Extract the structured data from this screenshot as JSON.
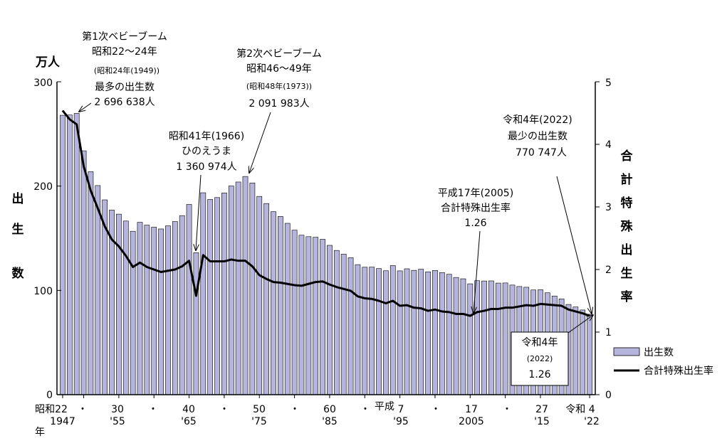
{
  "chart_data": {
    "type": "bar+line",
    "left_axis": {
      "unit_label": "万人",
      "title_chars": [
        "出",
        "生",
        "数"
      ],
      "min": 0,
      "max": 300,
      "ticks": [
        "0",
        "100",
        "200",
        "300"
      ],
      "tick_values": [
        0,
        100,
        200,
        300
      ]
    },
    "right_axis": {
      "title_chars": [
        "合",
        "計",
        "特",
        "殊",
        "出",
        "生",
        "率"
      ],
      "min": 0,
      "max": 5,
      "ticks": [
        "0",
        "1",
        "2",
        "3",
        "4",
        "5"
      ],
      "tick_values": [
        0,
        1,
        2,
        3,
        4,
        5
      ]
    },
    "years": [
      1947,
      1948,
      1949,
      1950,
      1951,
      1952,
      1953,
      1954,
      1955,
      1956,
      1957,
      1958,
      1959,
      1960,
      1961,
      1962,
      1963,
      1964,
      1965,
      1966,
      1967,
      1968,
      1969,
      1970,
      1971,
      1972,
      1973,
      1974,
      1975,
      1976,
      1977,
      1978,
      1979,
      1980,
      1981,
      1982,
      1983,
      1984,
      1985,
      1986,
      1987,
      1988,
      1989,
      1990,
      1991,
      1992,
      1993,
      1994,
      1995,
      1996,
      1997,
      1998,
      1999,
      2000,
      2001,
      2002,
      2003,
      2004,
      2005,
      2006,
      2007,
      2008,
      2009,
      2010,
      2011,
      2012,
      2013,
      2014,
      2015,
      2016,
      2017,
      2018,
      2019,
      2020,
      2021,
      2022
    ],
    "series": [
      {
        "name": "出生数",
        "type": "bar",
        "axis": "left",
        "color": "#b4b4dc",
        "values": [
          267.9,
          268.2,
          269.7,
          233.8,
          213.8,
          200.5,
          186.8,
          177.0,
          173.1,
          166.5,
          156.7,
          165.3,
          162.6,
          160.6,
          158.9,
          161.9,
          166.0,
          171.7,
          182.4,
          136.1,
          193.6,
          187.2,
          189.0,
          193.4,
          200.1,
          203.9,
          209.2,
          203.0,
          190.1,
          183.3,
          175.5,
          170.9,
          164.3,
          157.7,
          152.9,
          151.5,
          150.9,
          149.0,
          143.2,
          138.3,
          134.7,
          131.4,
          124.7,
          122.2,
          122.3,
          120.9,
          118.8,
          123.8,
          118.7,
          120.7,
          119.2,
          120.3,
          117.8,
          119.1,
          117.1,
          115.4,
          112.4,
          111.1,
          106.3,
          109.3,
          109.0,
          109.1,
          107.0,
          107.1,
          105.1,
          103.7,
          103.0,
          100.4,
          100.6,
          97.7,
          94.6,
          91.8,
          86.5,
          84.1,
          81.2,
          77.1
        ]
      },
      {
        "name": "合計特殊出生率",
        "type": "line",
        "axis": "right",
        "color": "#000000",
        "values": [
          4.54,
          4.4,
          4.32,
          3.65,
          3.26,
          2.98,
          2.69,
          2.48,
          2.37,
          2.22,
          2.04,
          2.11,
          2.04,
          2.0,
          1.96,
          1.98,
          2.0,
          2.05,
          2.14,
          1.58,
          2.23,
          2.13,
          2.13,
          2.13,
          2.16,
          2.14,
          2.14,
          2.05,
          1.91,
          1.85,
          1.8,
          1.79,
          1.77,
          1.75,
          1.74,
          1.77,
          1.8,
          1.81,
          1.76,
          1.72,
          1.69,
          1.66,
          1.57,
          1.54,
          1.53,
          1.5,
          1.46,
          1.5,
          1.42,
          1.43,
          1.39,
          1.38,
          1.34,
          1.36,
          1.33,
          1.32,
          1.29,
          1.29,
          1.26,
          1.32,
          1.34,
          1.37,
          1.37,
          1.39,
          1.39,
          1.41,
          1.43,
          1.42,
          1.45,
          1.44,
          1.43,
          1.42,
          1.36,
          1.33,
          1.3,
          1.26
        ]
      }
    ],
    "x_ticks": [
      {
        "year": 1947,
        "era": "昭和22",
        "western": "1947"
      },
      {
        "year": 1950,
        "era": "・",
        "western": ""
      },
      {
        "year": 1955,
        "era": "30",
        "western": "'55"
      },
      {
        "year": 1960,
        "era": "・",
        "western": ""
      },
      {
        "year": 1965,
        "era": "40",
        "western": "'65"
      },
      {
        "year": 1970,
        "era": "・",
        "western": ""
      },
      {
        "year": 1975,
        "era": "50",
        "western": "'75"
      },
      {
        "year": 1980,
        "era": "・",
        "western": ""
      },
      {
        "year": 1985,
        "era": "60",
        "western": "'85"
      },
      {
        "year": 1990,
        "era": "・",
        "western": ""
      },
      {
        "year": 1995,
        "era": "7",
        "western": "'95"
      },
      {
        "year": 2000,
        "era": "・",
        "western": ""
      },
      {
        "year": 2005,
        "era": "17",
        "western": "2005"
      },
      {
        "year": 2010,
        "era": "・",
        "western": ""
      },
      {
        "year": 2015,
        "era": "27",
        "western": "'15"
      },
      {
        "year": 2022,
        "era": "令和 4",
        "western": "'22"
      }
    ],
    "era_labels": {
      "heisei": "平成",
      "year_suffix": "年"
    },
    "annotations": [
      {
        "id": "baby-boom-1",
        "lines": [
          "第1次ベビーブーム",
          "昭和22〜24年",
          "(昭和24年(1949))",
          "最多の出生数",
          "2 696 638人"
        ],
        "year": 1949
      },
      {
        "id": "baby-boom-2",
        "lines": [
          "第2次ベビーブーム",
          "昭和46〜49年",
          "(昭和48年(1973))",
          "2 091 983人"
        ],
        "year": 1973
      },
      {
        "id": "hinoeuma",
        "lines": [
          "昭和41年(1966)",
          "ひのえうま",
          "1 360 974人"
        ],
        "year": 1966
      },
      {
        "id": "tfr-2005",
        "lines": [
          "平成17年(2005)",
          "合計特殊出生率",
          "1.26"
        ],
        "year": 2005
      },
      {
        "id": "min-births-2022",
        "lines": [
          "令和4年(2022)",
          "最少の出生数",
          "770 747人"
        ],
        "year": 2022
      },
      {
        "id": "tfr-2022",
        "lines": [
          "令和4年",
          "(2022)",
          "1.26"
        ],
        "year": 2022,
        "boxed": true
      }
    ],
    "legend": {
      "position": "right",
      "items": [
        {
          "label": "出生数",
          "kind": "bar"
        },
        {
          "label": "合計特殊出生率",
          "kind": "line"
        }
      ]
    }
  }
}
